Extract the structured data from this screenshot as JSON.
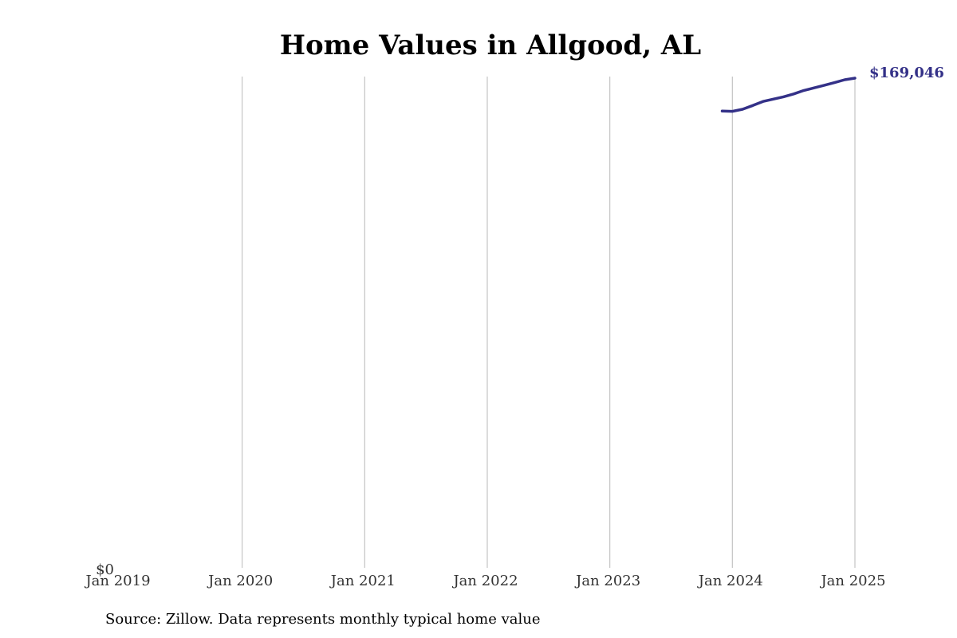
{
  "chart_data": {
    "type": "line",
    "title": "Home Values in Allgood, AL",
    "xlabel": "",
    "ylabel": "",
    "x_ticks": [
      "Jan 2019",
      "Jan 2020",
      "Jan 2021",
      "Jan 2022",
      "Jan 2023",
      "Jan 2024",
      "Jan 2025"
    ],
    "y_ticks": [
      "$0"
    ],
    "xlim": [
      "2019-01",
      "2025-01"
    ],
    "ylim": [
      0,
      169046
    ],
    "grid": "vertical",
    "series": [
      {
        "color": "#343188",
        "x": [
          "2023-12",
          "2024-01",
          "2024-02",
          "2024-03",
          "2024-04",
          "2024-05",
          "2024-06",
          "2024-07",
          "2024-08",
          "2024-09",
          "2024-10",
          "2024-11",
          "2024-12",
          "2025-01"
        ],
        "values": [
          157700,
          157600,
          158300,
          159600,
          161000,
          161800,
          162600,
          163600,
          164800,
          165700,
          166600,
          167500,
          168500,
          169046
        ]
      }
    ],
    "end_label": "$169,046",
    "source": "Source: Zillow. Data represents monthly typical home value"
  }
}
